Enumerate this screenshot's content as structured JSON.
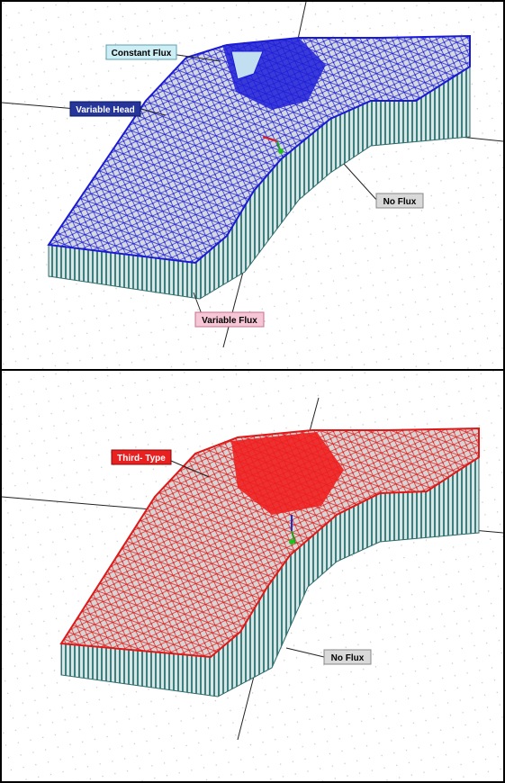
{
  "top_panel": {
    "labels": {
      "constant_flux": "Constant Flux",
      "variable_head": "Variable Head",
      "no_flux": "No Flux",
      "variable_flux": "Variable Flux"
    },
    "colors": {
      "node": "#1a1ad6",
      "constant_flux_bg": "#cdeef5",
      "variable_head_bg": "#26359a",
      "no_flux_bg": "#d9d9d9",
      "variable_flux_bg": "#f7c6d6"
    }
  },
  "bottom_panel": {
    "labels": {
      "third_type": "Third- Type",
      "no_flux": "No Flux"
    },
    "colors": {
      "node": "#e01818",
      "third_type_bg": "#e82020",
      "no_flux_bg": "#d9d9d9"
    }
  }
}
